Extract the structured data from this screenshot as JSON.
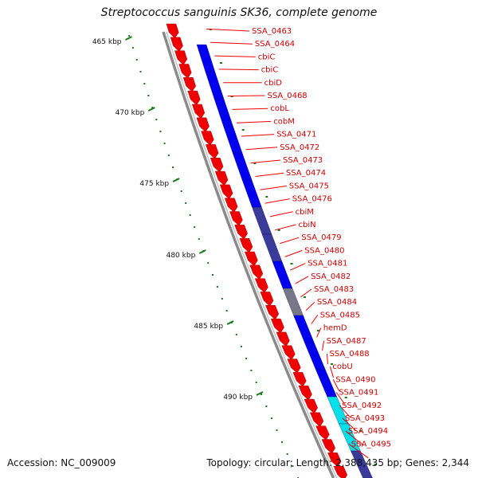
{
  "title": "Streptococcus sanguinis SK36, complete genome",
  "footer": {
    "accession": "Accession: NC_009009",
    "topology": "Topology: circular; Length: 2,388,435 bp; Genes: 2,344"
  },
  "colors": {
    "backbone": "#8a8a8a",
    "cds_forward": "#ee0000",
    "gc_skew_high": "#0000ee",
    "gc_skew_mid": "#3a3a99",
    "gc_skew_low": "#777788",
    "gc_cyan": "#00e0e8",
    "tick": "#1a7a1a",
    "label_line": "#ee0000",
    "label_text": "#cc0000"
  },
  "scale": {
    "ticks_kbp": [
      "465 kbp",
      "470 kbp",
      "475 kbp",
      "480 kbp",
      "485 kbp",
      "490 kbp"
    ]
  },
  "genes": [
    "SSA_0463",
    "SSA_0464",
    "cbiC",
    "cbiC",
    "cbiD",
    "SSA_0468",
    "cobL",
    "cobM",
    "SSA_0471",
    "SSA_0472",
    "SSA_0473",
    "SSA_0474",
    "SSA_0475",
    "SSA_0476",
    "cbiM",
    "cbiN",
    "SSA_0479",
    "SSA_0480",
    "SSA_0481",
    "SSA_0482",
    "SSA_0483",
    "SSA_0484",
    "SSA_0485",
    "hemD",
    "SSA_0487",
    "SSA_0488",
    "cobU",
    "SSA_0490",
    "SSA_0491",
    "SSA_0492",
    "SSA_0493",
    "SSA_0494",
    "SSA_0495"
  ],
  "gc_band_segments": [
    {
      "kind": "high"
    },
    {
      "kind": "high"
    },
    {
      "kind": "high"
    },
    {
      "kind": "high"
    },
    {
      "kind": "high"
    },
    {
      "kind": "high"
    },
    {
      "kind": "mid"
    },
    {
      "kind": "mid"
    },
    {
      "kind": "high"
    },
    {
      "kind": "low"
    },
    {
      "kind": "high"
    },
    {
      "kind": "high"
    },
    {
      "kind": "high"
    },
    {
      "kind": "cyan"
    },
    {
      "kind": "cyan"
    },
    {
      "kind": "mid"
    }
  ]
}
